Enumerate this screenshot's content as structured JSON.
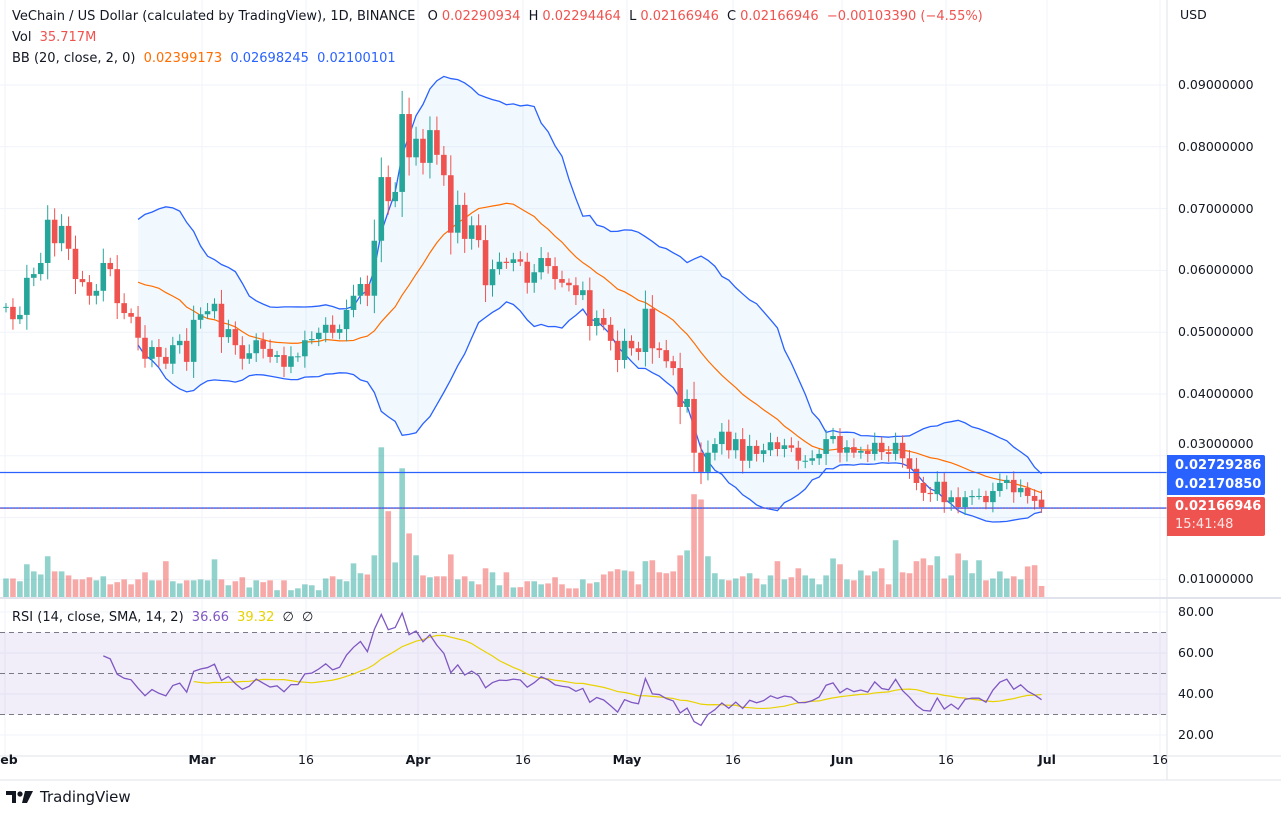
{
  "header": {
    "symbol": "VeChain / US Dollar (calculated by TradingView), 1D, BINANCE",
    "o_label": "O",
    "o": "0.02290934",
    "h_label": "H",
    "h": "0.02294464",
    "l_label": "L",
    "l": "0.02166946",
    "c_label": "C",
    "c": "0.02166946",
    "change": "−0.00103390 (−4.55%)",
    "vol_label": "Vol",
    "vol": "35.717M",
    "bb_label": "BB (20, close, 2, 0)",
    "bb_basis": "0.02399173",
    "bb_upper": "0.02698245",
    "bb_lower": "0.02100101"
  },
  "rsi_legend": {
    "label": "RSI (14, close, SMA, 14, 2)",
    "rsi": "36.66",
    "sma": "39.32",
    "v3": "∅",
    "v4": "∅"
  },
  "price_axis": {
    "currency": "USD",
    "ticks": [
      "0.09000000",
      "0.08000000",
      "0.07000000",
      "0.06000000",
      "0.05000000",
      "0.04000000",
      "0.03000000",
      "0.01000000"
    ]
  },
  "rsi_axis": {
    "ticks": [
      "80.00",
      "60.00",
      "40.00",
      "20.00"
    ]
  },
  "time_axis": {
    "labels": [
      "Feb",
      "Mar",
      "16",
      "Apr",
      "16",
      "May",
      "16",
      "Jun",
      "16",
      "Jul",
      "16"
    ]
  },
  "price_tags": {
    "line1": "0.02729286",
    "line2": "0.02170850",
    "last": "0.02166946",
    "countdown": "15:41:48"
  },
  "footer": {
    "brand": "TradingView"
  },
  "colors": {
    "up": "#26a69a",
    "down": "#ef5350",
    "bb_band": "#2962ff",
    "bb_basis": "#ff6d00",
    "rsi": "#7e57c2",
    "rsi_sma": "#e8d200",
    "hline": "#2962ff"
  },
  "chart_data": {
    "type": "candlestick",
    "interval": "1D",
    "x_range": [
      "Feb",
      "Jul"
    ],
    "y_range": [
      0.005,
      0.095
    ],
    "close": [
      0.0541,
      0.0521,
      0.0528,
      0.0588,
      0.0594,
      0.0612,
      0.0682,
      0.0644,
      0.0672,
      0.0635,
      0.0586,
      0.0581,
      0.0559,
      0.0567,
      0.0612,
      0.0602,
      0.0547,
      0.0531,
      0.0525,
      0.0491,
      0.0457,
      0.0476,
      0.046,
      0.0449,
      0.0479,
      0.0486,
      0.0452,
      0.052,
      0.0529,
      0.0534,
      0.0546,
      0.0492,
      0.0505,
      0.0479,
      0.0457,
      0.0466,
      0.0487,
      0.0473,
      0.046,
      0.0463,
      0.0444,
      0.0461,
      0.0461,
      0.0487,
      0.0489,
      0.0499,
      0.0512,
      0.0499,
      0.0505,
      0.0536,
      0.0559,
      0.0578,
      0.0559,
      0.0648,
      0.0751,
      0.0712,
      0.0727,
      0.0853,
      0.0783,
      0.0813,
      0.0774,
      0.0827,
      0.0787,
      0.0754,
      0.0661,
      0.0706,
      0.0651,
      0.0673,
      0.0649,
      0.0576,
      0.0602,
      0.0614,
      0.0612,
      0.0618,
      0.0614,
      0.058,
      0.0597,
      0.062,
      0.0607,
      0.0586,
      0.058,
      0.0576,
      0.056,
      0.0568,
      0.051,
      0.0523,
      0.0512,
      0.0486,
      0.0455,
      0.0486,
      0.0474,
      0.0468,
      0.0538,
      0.0474,
      0.0471,
      0.0453,
      0.0442,
      0.0379,
      0.0392,
      0.0305,
      0.0274,
      0.0305,
      0.0319,
      0.0339,
      0.0309,
      0.0327,
      0.0292,
      0.0316,
      0.0303,
      0.0309,
      0.0322,
      0.0311,
      0.0317,
      0.0313,
      0.0292,
      0.0292,
      0.0296,
      0.0303,
      0.0327,
      0.0332,
      0.0305,
      0.0314,
      0.0305,
      0.0308,
      0.0303,
      0.0321,
      0.0306,
      0.0303,
      0.0321,
      0.0296,
      0.0279,
      0.0256,
      0.024,
      0.0238,
      0.0258,
      0.0225,
      0.0233,
      0.0217,
      0.0233,
      0.0235,
      0.0235,
      0.0225,
      0.0243,
      0.0256,
      0.0261,
      0.0241,
      0.0248,
      0.0235,
      0.0227,
      0.02167
    ],
    "volume_millions": [
      60,
      60,
      51,
      106,
      83,
      73,
      132,
      83,
      83,
      70,
      57,
      57,
      64,
      54,
      67,
      41,
      48,
      57,
      41,
      57,
      80,
      54,
      54,
      116,
      51,
      44,
      54,
      54,
      57,
      54,
      122,
      57,
      38,
      51,
      64,
      31,
      54,
      48,
      54,
      22,
      54,
      22,
      28,
      41,
      38,
      22,
      60,
      67,
      57,
      51,
      109,
      77,
      73,
      135,
      485,
      278,
      112,
      417,
      206,
      135,
      70,
      64,
      67,
      67,
      138,
      57,
      67,
      51,
      41,
      93,
      80,
      38,
      80,
      31,
      32,
      51,
      51,
      41,
      44,
      64,
      41,
      28,
      28,
      57,
      44,
      48,
      73,
      83,
      90,
      86,
      83,
      41,
      116,
      119,
      80,
      77,
      83,
      135,
      151,
      333,
      316,
      132,
      77,
      57,
      54,
      60,
      67,
      77,
      60,
      41,
      70,
      116,
      57,
      64,
      93,
      70,
      60,
      41,
      70,
      125,
      106,
      57,
      54,
      86,
      70,
      83,
      93,
      41,
      184,
      80,
      77,
      116,
      125,
      103,
      132,
      60,
      70,
      141,
      119,
      77,
      119,
      54,
      60,
      83,
      60,
      67,
      57,
      99,
      103,
      35.717
    ],
    "horizontal_lines": [
      0.02729286,
      0.0217085
    ],
    "indicators": {
      "bollinger": {
        "length": 20,
        "source": "close",
        "mult": 2
      },
      "rsi": {
        "length": 14,
        "sma_length": 14,
        "upper": 70,
        "middle": 50,
        "lower": 30
      }
    }
  }
}
